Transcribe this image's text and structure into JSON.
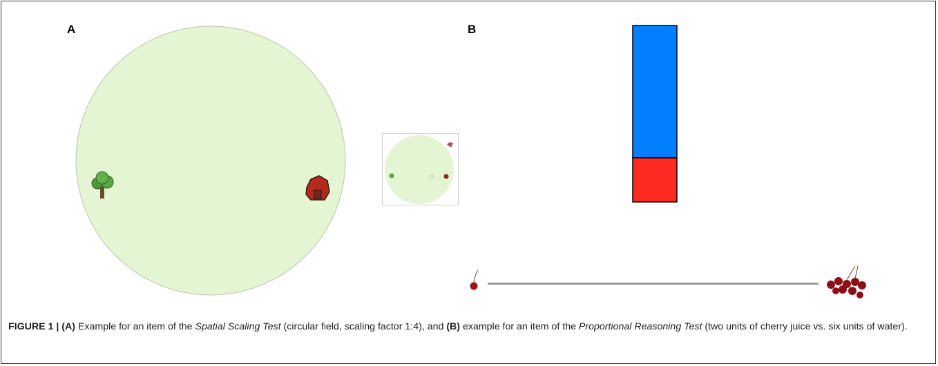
{
  "panels": [
    {
      "label": "A"
    },
    {
      "label": "B"
    }
  ],
  "caption": {
    "figure": "FIGURE 1 |",
    "part_a": "(A)",
    "text_1": " Example for an item of the ",
    "test_a": "Spatial Scaling Test",
    "text_2": " (circular field, scaling factor 1:4), and ",
    "part_b": "(B)",
    "text_3": " example for an item of the ",
    "test_b": "Proportional Reasoning Test",
    "text_4": " (two units of cherry juice vs. six units of water)."
  }
}
